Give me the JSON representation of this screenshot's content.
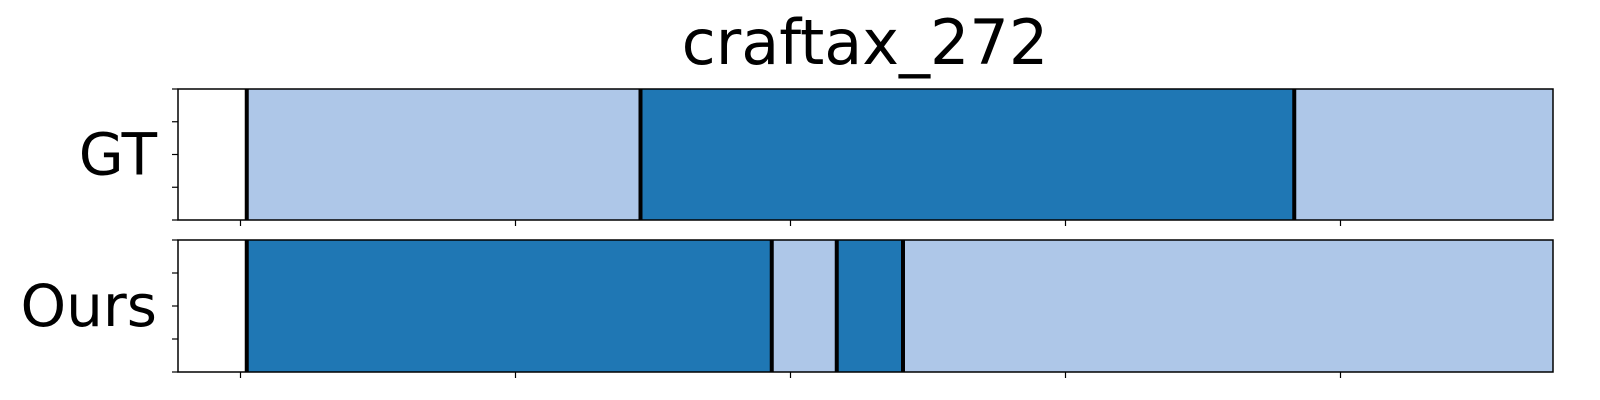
{
  "chart_data": {
    "type": "segmentation_timeline",
    "title": "craftax_272",
    "xlim": [
      0,
      110
    ],
    "x_ticks": [
      5,
      27,
      49,
      71,
      93,
      115
    ],
    "y_ticks_per_row": 5,
    "colors": {
      "dark": "#1f77b4",
      "light": "#aec7e8",
      "boundary": "#000000",
      "background": "#ffffff"
    },
    "rows": [
      {
        "label": "GT",
        "segments": [
          {
            "start": 5.5,
            "end": 37.0,
            "color": "light"
          },
          {
            "start": 37.0,
            "end": 89.3,
            "color": "dark"
          },
          {
            "start": 89.3,
            "end": 115.0,
            "color": "light"
          }
        ],
        "boundaries": [
          5.5,
          37.0,
          89.3,
          115.0
        ]
      },
      {
        "label": "Ours",
        "segments": [
          {
            "start": 5.5,
            "end": 47.5,
            "color": "dark"
          },
          {
            "start": 47.5,
            "end": 52.7,
            "color": "light"
          },
          {
            "start": 52.7,
            "end": 58.0,
            "color": "dark"
          },
          {
            "start": 58.0,
            "end": 115.0,
            "color": "light"
          }
        ],
        "boundaries": [
          5.5,
          47.5,
          52.7,
          58.0,
          115.0
        ]
      }
    ]
  }
}
